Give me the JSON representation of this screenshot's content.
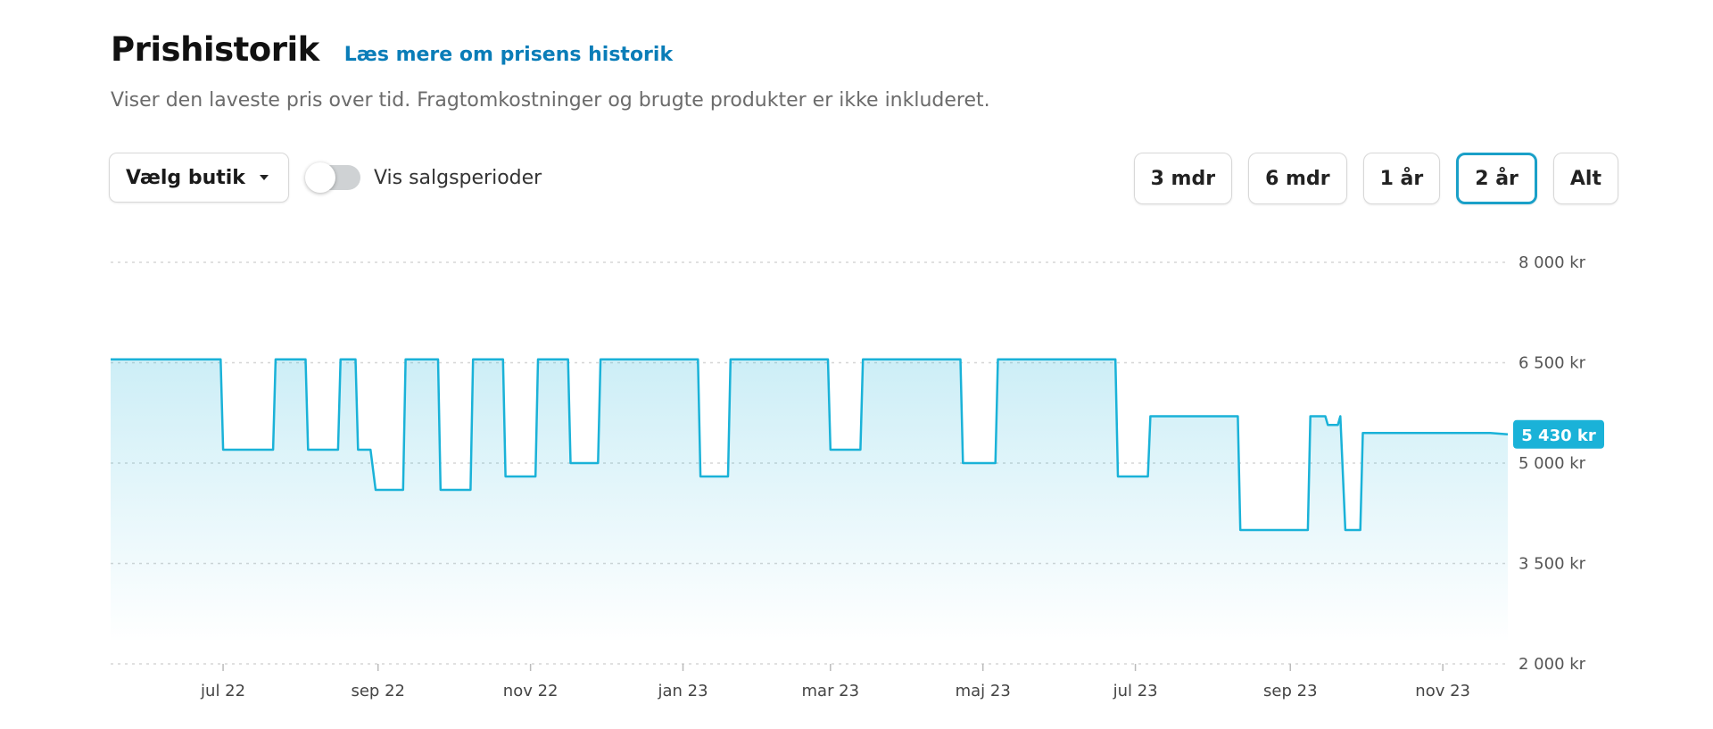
{
  "header": {
    "title": "Prishistorik",
    "link": "Læs mere om prisens historik",
    "subtitle": "Viser den laveste pris over tid. Fragtomkostninger og brugte produkter er ikke inkluderet."
  },
  "controls": {
    "store_select": "Vælg butik",
    "sale_toggle_label": "Vis salgsperioder",
    "sale_toggle_on": false,
    "ranges": [
      "3 mdr",
      "6 mdr",
      "1 år",
      "2 år",
      "Alt"
    ],
    "active_range": "2 år"
  },
  "colors": {
    "accent": "#1ab2d8",
    "link": "#0a7db8",
    "active_border": "#1aa0c8"
  },
  "chart_data": {
    "type": "line",
    "x_unit": "date",
    "y_unit": "kr",
    "ylim": [
      2000,
      8000
    ],
    "yticks": [
      2000,
      3500,
      5000,
      6500,
      8000
    ],
    "ytick_labels": [
      "2 000 kr",
      "3 500 kr",
      "5 000 kr",
      "6 500 kr",
      "8 000 kr"
    ],
    "xticks": [
      "2022-07-01",
      "2022-09-01",
      "2022-11-01",
      "2023-01-01",
      "2023-03-01",
      "2023-05-01",
      "2023-07-01",
      "2023-09-01",
      "2023-11-01"
    ],
    "xtick_labels": [
      "jul 22",
      "sep 22",
      "nov 22",
      "jan 23",
      "mar 23",
      "maj 23",
      "jul 23",
      "sep 23",
      "nov 23"
    ],
    "xlim": [
      "2022-05-17",
      "2023-11-27"
    ],
    "grid": true,
    "current_label": "5 430 kr",
    "current_value": 5430,
    "series": [
      {
        "points": [
          [
            "2022-05-17",
            6550
          ],
          [
            "2022-06-30",
            6550
          ],
          [
            "2022-07-01",
            5200
          ],
          [
            "2022-07-21",
            5200
          ],
          [
            "2022-07-22",
            6550
          ],
          [
            "2022-08-03",
            6550
          ],
          [
            "2022-08-04",
            5200
          ],
          [
            "2022-08-16",
            5200
          ],
          [
            "2022-08-17",
            6550
          ],
          [
            "2022-08-23",
            6550
          ],
          [
            "2022-08-24",
            5200
          ],
          [
            "2022-08-29",
            5200
          ],
          [
            "2022-08-31",
            4600
          ],
          [
            "2022-09-11",
            4600
          ],
          [
            "2022-09-12",
            6550
          ],
          [
            "2022-09-25",
            6550
          ],
          [
            "2022-09-26",
            4600
          ],
          [
            "2022-10-08",
            4600
          ],
          [
            "2022-10-09",
            6550
          ],
          [
            "2022-10-21",
            6550
          ],
          [
            "2022-10-22",
            4800
          ],
          [
            "2022-11-03",
            4800
          ],
          [
            "2022-11-04",
            6550
          ],
          [
            "2022-11-16",
            6550
          ],
          [
            "2022-11-17",
            5000
          ],
          [
            "2022-11-28",
            5000
          ],
          [
            "2022-11-29",
            6550
          ],
          [
            "2023-01-07",
            6550
          ],
          [
            "2023-01-08",
            4800
          ],
          [
            "2023-01-19",
            4800
          ],
          [
            "2023-01-20",
            6550
          ],
          [
            "2023-02-28",
            6550
          ],
          [
            "2023-03-01",
            5200
          ],
          [
            "2023-03-13",
            5200
          ],
          [
            "2023-03-14",
            6550
          ],
          [
            "2023-04-22",
            6550
          ],
          [
            "2023-04-23",
            5000
          ],
          [
            "2023-05-06",
            5000
          ],
          [
            "2023-05-07",
            6550
          ],
          [
            "2023-06-23",
            6550
          ],
          [
            "2023-06-24",
            4800
          ],
          [
            "2023-07-06",
            4800
          ],
          [
            "2023-07-07",
            5700
          ],
          [
            "2023-08-11",
            5700
          ],
          [
            "2023-08-12",
            4000
          ],
          [
            "2023-09-08",
            4000
          ],
          [
            "2023-09-09",
            5700
          ],
          [
            "2023-09-15",
            5700
          ],
          [
            "2023-09-16",
            5570
          ],
          [
            "2023-09-20",
            5570
          ],
          [
            "2023-09-21",
            5700
          ],
          [
            "2023-09-23",
            4000
          ],
          [
            "2023-09-29",
            4000
          ],
          [
            "2023-09-30",
            5450
          ],
          [
            "2023-11-20",
            5450
          ],
          [
            "2023-11-27",
            5430
          ]
        ]
      }
    ]
  }
}
